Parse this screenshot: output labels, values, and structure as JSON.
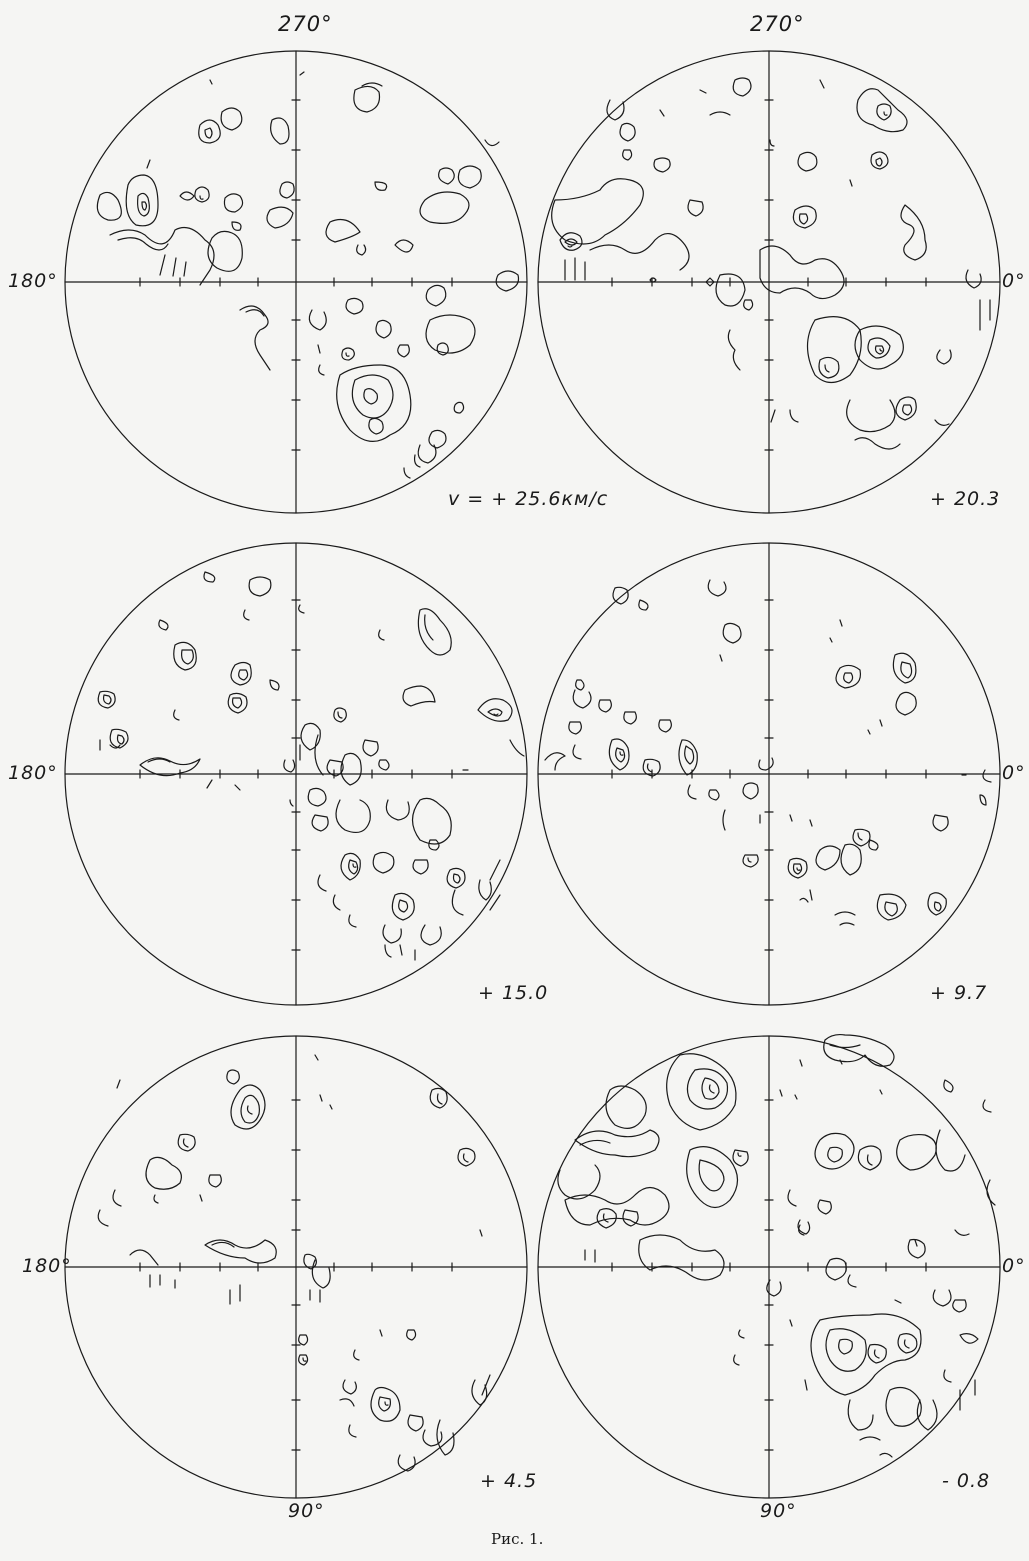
{
  "figure": {
    "caption": "Рис. 1.",
    "axis_labels": {
      "top_left": "270°",
      "top_right": "270°",
      "left_row1": "180°",
      "right_row1": "0°",
      "left_row2": "180°",
      "right_row2": "0°",
      "left_row3": "180°",
      "right_row3": "0°",
      "bottom_left": "90°",
      "bottom_right": "90°"
    },
    "panels": [
      {
        "velocity_label": "v = + 25.6км/с"
      },
      {
        "velocity_label": "+ 20.3"
      },
      {
        "velocity_label": "+ 15.0"
      },
      {
        "velocity_label": "+ 9.7"
      },
      {
        "velocity_label": "+ 4.5"
      },
      {
        "velocity_label": "- 0.8"
      }
    ],
    "colors": {
      "ink": "#1a1a1a",
      "paper": "#f5f5f3"
    }
  }
}
